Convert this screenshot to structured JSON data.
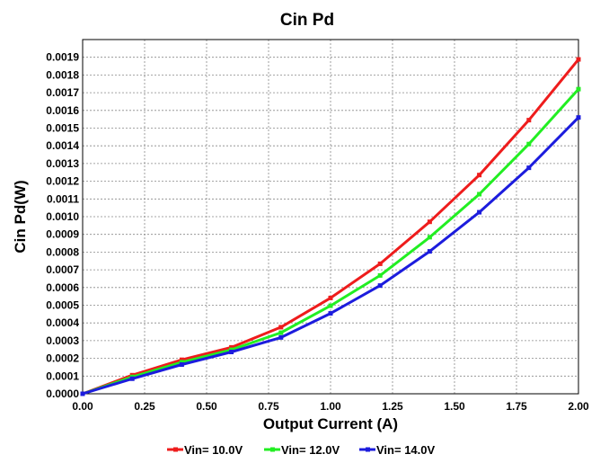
{
  "chart_data": {
    "type": "line",
    "title": "Cin Pd",
    "xlabel": "Output Current (A)",
    "ylabel": "Cin Pd(W)",
    "xlim": [
      0,
      2.0
    ],
    "ylim": [
      0,
      0.002
    ],
    "x_ticks": [
      "0.00",
      "0.25",
      "0.50",
      "0.75",
      "1.00",
      "1.25",
      "1.50",
      "1.75",
      "2.00"
    ],
    "y_ticks": [
      "0.0000",
      "0.0001",
      "0.0002",
      "0.0003",
      "0.0004",
      "0.0005",
      "0.0006",
      "0.0007",
      "0.0008",
      "0.0009",
      "0.0010",
      "0.0011",
      "0.0012",
      "0.0013",
      "0.0014",
      "0.0015",
      "0.0016",
      "0.0017",
      "0.0018",
      "0.0019"
    ],
    "grid": true,
    "legend_position": "bottom",
    "x": [
      0,
      0.2,
      0.4,
      0.6,
      0.8,
      1.0,
      1.2,
      1.4,
      1.6,
      1.8,
      2.0
    ],
    "series": [
      {
        "name": "Vin= 10.0V",
        "color": "#ee1c1c",
        "values": [
          0,
          0.000105,
          0.000192,
          0.000262,
          0.000376,
          0.000541,
          0.000734,
          0.000971,
          0.001235,
          0.001545,
          0.001888
        ]
      },
      {
        "name": "Vin= 12.0V",
        "color": "#22ee22",
        "values": [
          0,
          9.5e-05,
          0.000178,
          0.000248,
          0.000345,
          0.000497,
          0.000668,
          0.000884,
          0.001127,
          0.00141,
          0.00172
        ]
      },
      {
        "name": "Vin= 14.0V",
        "color": "#1c1cdd",
        "values": [
          0,
          8.5e-05,
          0.000165,
          0.000236,
          0.000318,
          0.000454,
          0.000611,
          0.000804,
          0.001025,
          0.001276,
          0.00156
        ]
      }
    ]
  }
}
